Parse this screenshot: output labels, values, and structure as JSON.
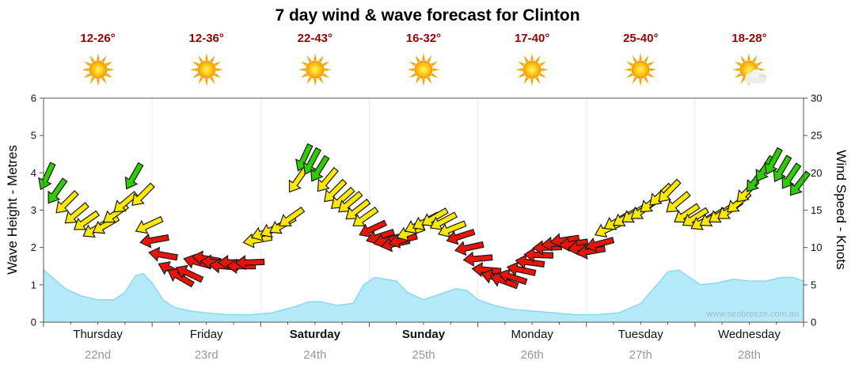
{
  "title": "7 day wind & wave forecast for Clinton",
  "watermark": "www.seabreeze.com.au",
  "axes": {
    "left_label": "Wave Height - Metres",
    "right_label": "Wind Speed - Knots"
  },
  "colors": {
    "g": "#2ecc00",
    "y": "#ffe800",
    "r": "#e81309",
    "arrow_outline": "#1a1a1a",
    "wave_fill": "#b5eafa",
    "wave_stroke": "#8ad8f0",
    "temp_text": "#990000",
    "date_text": "#999999",
    "day_text": "#111111",
    "axis_line": "#555555",
    "tick_text": "#111111",
    "grid_line": "#ececec",
    "watermark_text": "#a3bfc9"
  },
  "days": [
    {
      "name": "Thursday",
      "date": "22nd",
      "temp": "12-26°",
      "icon": "sunny",
      "bold": false
    },
    {
      "name": "Friday",
      "date": "23rd",
      "temp": "12-36°",
      "icon": "sunny",
      "bold": false
    },
    {
      "name": "Saturday",
      "date": "24th",
      "temp": "22-43°",
      "icon": "sunny",
      "bold": true
    },
    {
      "name": "Sunday",
      "date": "25th",
      "temp": "16-32°",
      "icon": "sunny",
      "bold": true
    },
    {
      "name": "Monday",
      "date": "26th",
      "temp": "17-40°",
      "icon": "sunny",
      "bold": false
    },
    {
      "name": "Tuesday",
      "date": "27th",
      "temp": "25-40°",
      "icon": "sunny",
      "bold": false
    },
    {
      "name": "Wednesday",
      "date": "28th",
      "temp": "18-28°",
      "icon": "partly-cloudy",
      "bold": false
    }
  ],
  "chart_data": {
    "type": "combo",
    "title": "7 day wind & wave forecast for Clinton",
    "x_axis": {
      "unit": "day (0 = start of Thursday 22nd, 7 = end of Wednesday 28th)",
      "categories": [
        "Thursday 22nd",
        "Friday 23rd",
        "Saturday 24th",
        "Sunday 25th",
        "Monday 26th",
        "Tuesday 27th",
        "Wednesday 28th"
      ]
    },
    "left_axis": {
      "label": "Wave Height - Metres",
      "min": 0,
      "max": 6,
      "ticks": [
        0,
        1,
        2,
        3,
        4,
        5,
        6
      ]
    },
    "right_axis": {
      "label": "Wind Speed - Knots",
      "min": 0,
      "max": 30,
      "ticks": [
        0,
        5,
        10,
        15,
        20,
        25,
        30
      ]
    },
    "series": [
      {
        "name": "Wave Height",
        "type": "area",
        "axis": "left",
        "unit": "m",
        "points": [
          [
            0,
            1.4
          ],
          [
            0.1,
            1.15
          ],
          [
            0.2,
            0.9
          ],
          [
            0.35,
            0.7
          ],
          [
            0.5,
            0.6
          ],
          [
            0.65,
            0.6
          ],
          [
            0.75,
            0.8
          ],
          [
            0.85,
            1.25
          ],
          [
            0.92,
            1.3
          ],
          [
            1.0,
            1.05
          ],
          [
            1.1,
            0.6
          ],
          [
            1.2,
            0.4
          ],
          [
            1.35,
            0.3
          ],
          [
            1.5,
            0.25
          ],
          [
            1.7,
            0.2
          ],
          [
            1.9,
            0.2
          ],
          [
            2.1,
            0.25
          ],
          [
            2.3,
            0.4
          ],
          [
            2.45,
            0.55
          ],
          [
            2.55,
            0.55
          ],
          [
            2.7,
            0.45
          ],
          [
            2.85,
            0.5
          ],
          [
            2.95,
            1.0
          ],
          [
            3.05,
            1.2
          ],
          [
            3.15,
            1.15
          ],
          [
            3.25,
            1.1
          ],
          [
            3.35,
            0.8
          ],
          [
            3.5,
            0.6
          ],
          [
            3.65,
            0.75
          ],
          [
            3.8,
            0.9
          ],
          [
            3.9,
            0.85
          ],
          [
            4.0,
            0.6
          ],
          [
            4.15,
            0.45
          ],
          [
            4.3,
            0.35
          ],
          [
            4.5,
            0.3
          ],
          [
            4.7,
            0.25
          ],
          [
            4.9,
            0.2
          ],
          [
            5.1,
            0.2
          ],
          [
            5.3,
            0.25
          ],
          [
            5.5,
            0.5
          ],
          [
            5.65,
            1.0
          ],
          [
            5.75,
            1.35
          ],
          [
            5.85,
            1.4
          ],
          [
            5.95,
            1.2
          ],
          [
            6.05,
            1.0
          ],
          [
            6.2,
            1.05
          ],
          [
            6.35,
            1.15
          ],
          [
            6.5,
            1.1
          ],
          [
            6.65,
            1.1
          ],
          [
            6.8,
            1.2
          ],
          [
            6.9,
            1.2
          ],
          [
            7.0,
            1.1
          ]
        ]
      },
      {
        "name": "Wind",
        "type": "wind-arrows",
        "axis": "right",
        "unit": "knots",
        "note": "each point is [day_x, knots, arrow_direction_deg_clockwise_from_up, color_key]",
        "points": [
          [
            0.03,
            19.5,
            205,
            "g"
          ],
          [
            0.12,
            17.5,
            215,
            "g"
          ],
          [
            0.21,
            16,
            225,
            "y"
          ],
          [
            0.3,
            14.5,
            230,
            "y"
          ],
          [
            0.39,
            13.5,
            235,
            "y"
          ],
          [
            0.48,
            12.5,
            240,
            "y"
          ],
          [
            0.57,
            13,
            240,
            "y"
          ],
          [
            0.66,
            14.5,
            235,
            "y"
          ],
          [
            0.75,
            16,
            230,
            "y"
          ],
          [
            0.83,
            19.5,
            210,
            "g"
          ],
          [
            0.91,
            17,
            225,
            "y"
          ],
          [
            0.97,
            13,
            245,
            "y"
          ],
          [
            1.02,
            11,
            260,
            "r"
          ],
          [
            1.1,
            9,
            280,
            "r"
          ],
          [
            1.18,
            7,
            295,
            "r"
          ],
          [
            1.26,
            6,
            300,
            "r"
          ],
          [
            1.34,
            6.5,
            295,
            "r"
          ],
          [
            1.42,
            8,
            285,
            "r"
          ],
          [
            1.5,
            8.5,
            280,
            "r"
          ],
          [
            1.58,
            8,
            275,
            "r"
          ],
          [
            1.66,
            7.5,
            275,
            "r"
          ],
          [
            1.74,
            8,
            270,
            "r"
          ],
          [
            1.82,
            7.5,
            270,
            "r"
          ],
          [
            1.9,
            8,
            268,
            "r"
          ],
          [
            1.97,
            11,
            260,
            "y"
          ],
          [
            2.04,
            12,
            250,
            "y"
          ],
          [
            2.12,
            12.5,
            245,
            "y"
          ],
          [
            2.2,
            13,
            240,
            "y"
          ],
          [
            2.28,
            14,
            235,
            "y"
          ],
          [
            2.34,
            19,
            215,
            "y"
          ],
          [
            2.4,
            22,
            205,
            "g"
          ],
          [
            2.47,
            21.5,
            208,
            "g"
          ],
          [
            2.54,
            20.5,
            212,
            "g"
          ],
          [
            2.61,
            19,
            220,
            "y"
          ],
          [
            2.68,
            17.5,
            225,
            "y"
          ],
          [
            2.75,
            16.5,
            228,
            "y"
          ],
          [
            2.82,
            16,
            230,
            "y"
          ],
          [
            2.89,
            15,
            232,
            "y"
          ],
          [
            2.96,
            14,
            235,
            "y"
          ],
          [
            3.03,
            12.5,
            245,
            "r"
          ],
          [
            3.1,
            11.5,
            252,
            "r"
          ],
          [
            3.17,
            11,
            255,
            "r"
          ],
          [
            3.24,
            10.5,
            258,
            "r"
          ],
          [
            3.31,
            11,
            255,
            "r"
          ],
          [
            3.38,
            12,
            250,
            "y"
          ],
          [
            3.45,
            13,
            245,
            "y"
          ],
          [
            3.52,
            13.5,
            242,
            "y"
          ],
          [
            3.6,
            14,
            240,
            "y"
          ],
          [
            3.68,
            13.5,
            242,
            "y"
          ],
          [
            3.76,
            12.5,
            248,
            "y"
          ],
          [
            3.84,
            11.5,
            252,
            "r"
          ],
          [
            3.92,
            10,
            258,
            "r"
          ],
          [
            4.0,
            8.5,
            265,
            "r"
          ],
          [
            4.08,
            7,
            275,
            "r"
          ],
          [
            4.16,
            6,
            285,
            "r"
          ],
          [
            4.24,
            5.5,
            290,
            "r"
          ],
          [
            4.32,
            6,
            288,
            "r"
          ],
          [
            4.4,
            7,
            282,
            "r"
          ],
          [
            4.48,
            8,
            278,
            "r"
          ],
          [
            4.56,
            9,
            272,
            "r"
          ],
          [
            4.64,
            10,
            268,
            "r"
          ],
          [
            4.72,
            10.5,
            265,
            "r"
          ],
          [
            4.8,
            11,
            262,
            "r"
          ],
          [
            4.88,
            10.5,
            262,
            "r"
          ],
          [
            4.96,
            10,
            262,
            "r"
          ],
          [
            5.04,
            9.5,
            260,
            "r"
          ],
          [
            5.12,
            10.5,
            255,
            "r"
          ],
          [
            5.2,
            12.5,
            245,
            "y"
          ],
          [
            5.28,
            13.5,
            240,
            "y"
          ],
          [
            5.36,
            14,
            238,
            "y"
          ],
          [
            5.44,
            14.5,
            236,
            "y"
          ],
          [
            5.52,
            15,
            234,
            "y"
          ],
          [
            5.6,
            16,
            230,
            "y"
          ],
          [
            5.68,
            17,
            226,
            "y"
          ],
          [
            5.76,
            17.5,
            224,
            "y"
          ],
          [
            5.84,
            16,
            230,
            "y"
          ],
          [
            5.92,
            14.5,
            236,
            "y"
          ],
          [
            6.0,
            14,
            238,
            "y"
          ],
          [
            6.08,
            13.5,
            240,
            "y"
          ],
          [
            6.16,
            14,
            238,
            "y"
          ],
          [
            6.24,
            14.5,
            236,
            "y"
          ],
          [
            6.32,
            15,
            234,
            "y"
          ],
          [
            6.4,
            16,
            230,
            "y"
          ],
          [
            6.48,
            17.5,
            224,
            "y"
          ],
          [
            6.56,
            19,
            218,
            "g"
          ],
          [
            6.64,
            20.5,
            212,
            "g"
          ],
          [
            6.72,
            21.5,
            208,
            "g"
          ],
          [
            6.8,
            20.5,
            210,
            "g"
          ],
          [
            6.88,
            19.5,
            214,
            "g"
          ],
          [
            6.96,
            18.5,
            218,
            "g"
          ]
        ]
      }
    ]
  }
}
